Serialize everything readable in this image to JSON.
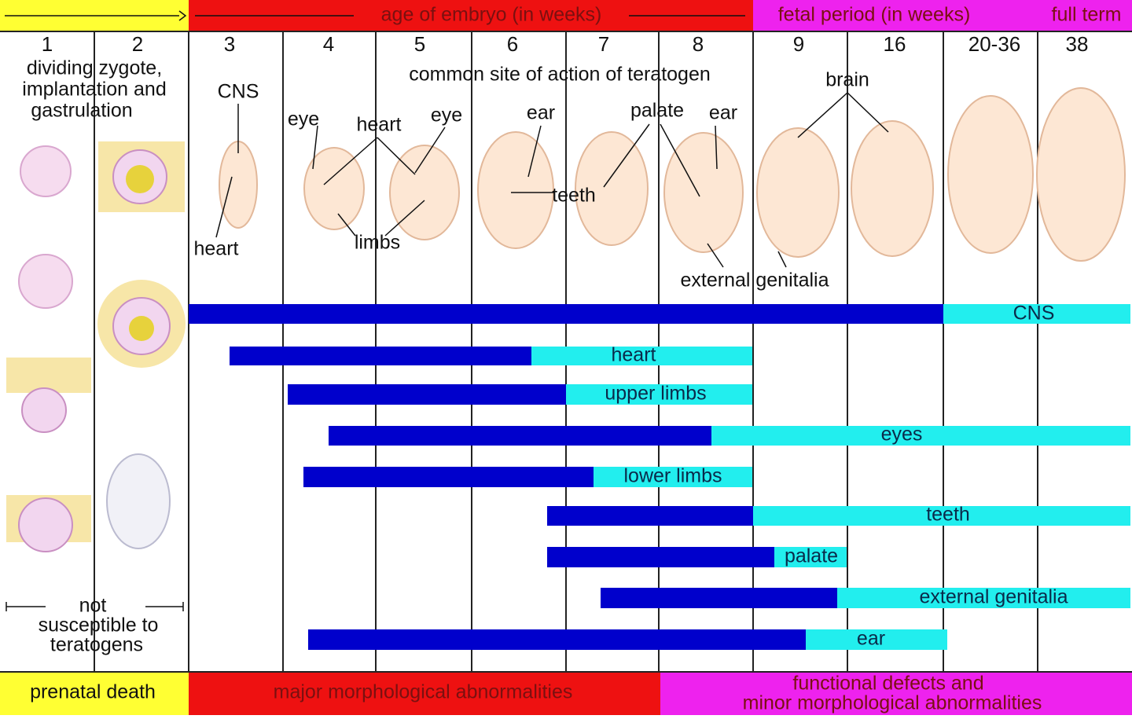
{
  "header": {
    "embryo": "age of embryo (in weeks)",
    "fetal": "fetal period (in weeks)",
    "full_term": "full term"
  },
  "weeks": [
    "1",
    "2",
    "3",
    "4",
    "5",
    "6",
    "7",
    "8",
    "9",
    "16",
    "20-36",
    "38"
  ],
  "intro": [
    "dividing zygote,",
    "implantation and",
    "gastrulation"
  ],
  "annotations": [
    "common site of action of teratogen",
    "CNS",
    "heart",
    "eye",
    "heart",
    "eye",
    "limbs",
    "ear",
    "teeth",
    "palate",
    "ear",
    "brain",
    "external genitalia"
  ],
  "bars": [
    "CNS",
    "heart",
    "upper limbs",
    "eyes",
    "lower limbs",
    "teeth",
    "palate",
    "external genitalia",
    "ear"
  ],
  "not_susceptible": [
    "not",
    "susceptible to",
    "teratogens"
  ],
  "footer": {
    "left": "prenatal death",
    "middle": "major morphological abnormalities",
    "right": [
      "functional defects and",
      "minor morphological abnormalities"
    ]
  }
}
